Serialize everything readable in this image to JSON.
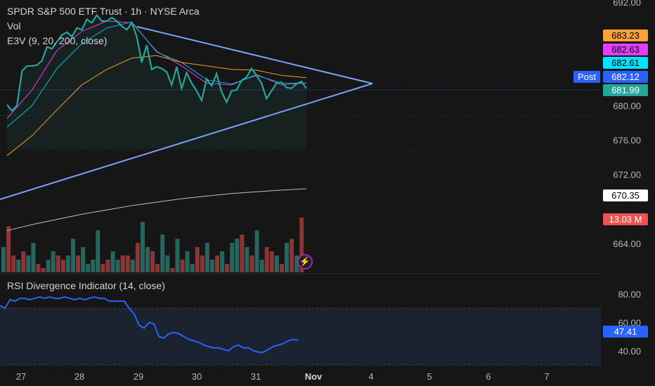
{
  "header": {
    "symbol_line": "SPDR S&P 500 ETF Trust · 1h · NYSE Arca",
    "vol_label": "Vol",
    "e3v_label": "E3V (9, 20, 200, close)",
    "rsi_label": "RSI Divergence Indicator (14, close)"
  },
  "colors": {
    "background": "#161616",
    "price_line": "#26a69a",
    "ema9": "#e040fb",
    "ema20": "#00bcd4",
    "ema50": "#f0a030",
    "ema200": "#bfbfbf",
    "trendline": "#7aa2f7",
    "rsi_line": "#2962ff",
    "vol_up": "#26665e",
    "vol_down": "#8c3535"
  },
  "tags": {
    "t1": {
      "label": "683.23",
      "bg": "#f7a33a",
      "fg": "#000000"
    },
    "t2": {
      "label": "682.63",
      "bg": "#e040fb",
      "fg": "#000000"
    },
    "t3": {
      "label": "682.61",
      "bg": "#00e5ff",
      "fg": "#000000"
    },
    "t4": {
      "label": "682.12",
      "bg": "#2962ff",
      "fg": "#ffffff"
    },
    "t5": {
      "label": "681.99",
      "bg": "#26a69a",
      "fg": "#ffffff"
    },
    "t6": {
      "label": "670.35",
      "bg": "#ffffff",
      "fg": "#000000"
    },
    "t7": {
      "label": "13.03 M",
      "bg": "#ef5350",
      "fg": "#ffffff"
    },
    "t8": {
      "label": "47.41",
      "bg": "#2962ff",
      "fg": "#ffffff"
    },
    "post": "Post"
  },
  "chart_data": [
    {
      "type": "line",
      "title": "SPDR S&P 500 ETF Trust · 1h · NYSE Arca",
      "y_ticks": [
        "692.00",
        "680.00",
        "676.00",
        "672.00",
        "664.00"
      ],
      "x_ticks": [
        "27",
        "28",
        "29",
        "30",
        "31",
        "Nov",
        "4",
        "5",
        "6",
        "7"
      ],
      "ylim": [
        660.5,
        692
      ],
      "series": [
        {
          "name": "close",
          "x": [
            0,
            0.2,
            0.4,
            0.6,
            0.8,
            1,
            1.2,
            1.4,
            1.6,
            1.8,
            2,
            2.2,
            2.4,
            2.6,
            2.8,
            3,
            3.2,
            3.4,
            3.6,
            3.8,
            4,
            4.2,
            4.4,
            4.6,
            4.8,
            5,
            5.2,
            5.4,
            5.6,
            5.8,
            6,
            6.2,
            6.4,
            6.6,
            6.8,
            7,
            7.2,
            7.4,
            7.6,
            7.8,
            8,
            8.2,
            8.4,
            8.6,
            8.8,
            9,
            9.2,
            9.4,
            9.6,
            9.8,
            10,
            10.2,
            10.4,
            10.6,
            10.8,
            11,
            11.2,
            11.4,
            11.6,
            11.8,
            12
          ],
          "y": [
            680.1,
            679.4,
            680.0,
            684.0,
            684.6,
            684.6,
            684.7,
            685.2,
            686.8,
            686.6,
            687.4,
            688.2,
            688.5,
            688.0,
            689.0,
            688.8,
            690.0,
            689.6,
            690.5,
            689.8,
            689.8,
            690.2,
            689.8,
            689.2,
            688.8,
            689.6,
            688.0,
            685.0,
            687.0,
            684.2,
            684.5,
            684.3,
            683.9,
            682.4,
            684.5,
            682.0,
            683.8,
            682.6,
            681.7,
            680.6,
            683.1,
            682.3,
            683.7,
            681.6,
            680.4,
            681.7,
            681.8,
            682.9,
            683.3,
            684.3,
            683.5,
            682.6,
            680.8,
            681.7,
            682.6,
            682.7,
            682.1,
            682.0,
            682.5,
            682.8,
            681.99
          ]
        },
        {
          "name": "ema9",
          "x": [
            0,
            1,
            2,
            3,
            4,
            5,
            6,
            7,
            8,
            9,
            10,
            11,
            12
          ],
          "y": [
            678.5,
            681.8,
            686.4,
            688.6,
            689.8,
            689.6,
            686.3,
            684.6,
            682.6,
            682.4,
            683.6,
            682.4,
            682.63
          ]
        },
        {
          "name": "ema20",
          "x": [
            0,
            1,
            2,
            3,
            4,
            5,
            6,
            7,
            8,
            9,
            10,
            11,
            12
          ],
          "y": [
            677.5,
            680.0,
            684.3,
            687.2,
            689.0,
            689.7,
            686.2,
            685.0,
            683.0,
            682.5,
            683.5,
            682.6,
            682.61
          ]
        },
        {
          "name": "ema50",
          "x": [
            0,
            1,
            2,
            3,
            4,
            5,
            6,
            7,
            8,
            9,
            10,
            11,
            12
          ],
          "y": [
            674.2,
            676.5,
            679.5,
            682.4,
            684.2,
            685.5,
            685.8,
            685.0,
            684.6,
            684.2,
            684.1,
            683.5,
            683.23
          ]
        },
        {
          "name": "ema200",
          "x": [
            0,
            1,
            2,
            3,
            4,
            5,
            6,
            7,
            8,
            9,
            10,
            11,
            12
          ],
          "y": [
            665.5,
            666.2,
            666.8,
            667.4,
            667.9,
            668.4,
            668.8,
            669.2,
            669.5,
            669.8,
            670.0,
            670.2,
            670.35
          ]
        }
      ]
    },
    {
      "type": "bar",
      "title": "Vol",
      "x": [
        0,
        1,
        2,
        3,
        4,
        5,
        6,
        7,
        8,
        9,
        10,
        11,
        12,
        13,
        14,
        15,
        16,
        17,
        18,
        19,
        20,
        21,
        22,
        23,
        24,
        25,
        26,
        27,
        28,
        29,
        30,
        31,
        32,
        33,
        34,
        35,
        36,
        37,
        38,
        39,
        40,
        41,
        42,
        43,
        44,
        45,
        46,
        47,
        48,
        49,
        50,
        51,
        52,
        53,
        54,
        55,
        56,
        57,
        58,
        59,
        60
      ],
      "values": [
        6,
        11,
        4,
        3,
        5,
        4,
        7,
        2,
        1,
        3,
        5,
        4,
        3,
        4,
        8,
        4,
        6,
        2,
        3,
        10,
        2,
        3,
        5,
        3,
        4,
        4,
        3,
        7,
        12,
        6,
        5,
        2,
        9,
        4,
        1,
        8,
        3,
        5,
        2,
        6,
        4,
        7,
        3,
        4,
        5,
        2,
        7,
        8,
        9,
        6,
        4,
        10,
        3,
        6,
        5,
        4,
        2,
        7,
        8,
        4,
        13.03
      ],
      "directions": [
        "u",
        "d",
        "d",
        "u",
        "d",
        "u",
        "u",
        "d",
        "d",
        "u",
        "u",
        "d",
        "d",
        "u",
        "u",
        "d",
        "u",
        "u",
        "u",
        "u",
        "d",
        "d",
        "u",
        "u",
        "d",
        "d",
        "u",
        "d",
        "u",
        "u",
        "d",
        "d",
        "u",
        "u",
        "d",
        "u",
        "d",
        "u",
        "u",
        "d",
        "d",
        "u",
        "u",
        "d",
        "u",
        "d",
        "u",
        "u",
        "d",
        "u",
        "d",
        "u",
        "u",
        "d",
        "d",
        "u",
        "d",
        "u",
        "d",
        "u",
        "d"
      ]
    },
    {
      "type": "line",
      "title": "RSI Divergence Indicator (14, close)",
      "y_ticks": [
        "80.00",
        "60.00",
        "40.00"
      ],
      "ylim": [
        30,
        82
      ],
      "series": [
        {
          "name": "RSI",
          "x": [
            0,
            1,
            2,
            3,
            4,
            5,
            6,
            7,
            8,
            9,
            10,
            11,
            12,
            13,
            14,
            15,
            16,
            17,
            18,
            19,
            20,
            21,
            22,
            23,
            24,
            25,
            26,
            27,
            28,
            29,
            30,
            31,
            32,
            33,
            34,
            35,
            36,
            37,
            38,
            39,
            40,
            41,
            42,
            43,
            44,
            45,
            46,
            47,
            48,
            49,
            50,
            51,
            52,
            53,
            54,
            55,
            56,
            57,
            58,
            59,
            60
          ],
          "y": [
            72,
            70,
            76,
            75,
            77,
            77,
            76,
            77,
            78,
            77,
            78,
            77,
            77,
            78,
            77,
            76,
            77,
            76,
            77,
            78,
            77,
            77,
            75,
            75,
            75,
            75,
            70,
            66,
            58,
            56,
            60,
            59,
            50,
            49,
            52,
            53,
            52,
            50,
            48,
            47,
            46,
            44,
            43,
            42,
            42,
            41,
            40,
            43,
            44,
            42,
            42,
            40,
            39,
            39,
            41,
            43,
            44,
            45,
            47,
            48,
            47.41
          ]
        }
      ]
    }
  ]
}
